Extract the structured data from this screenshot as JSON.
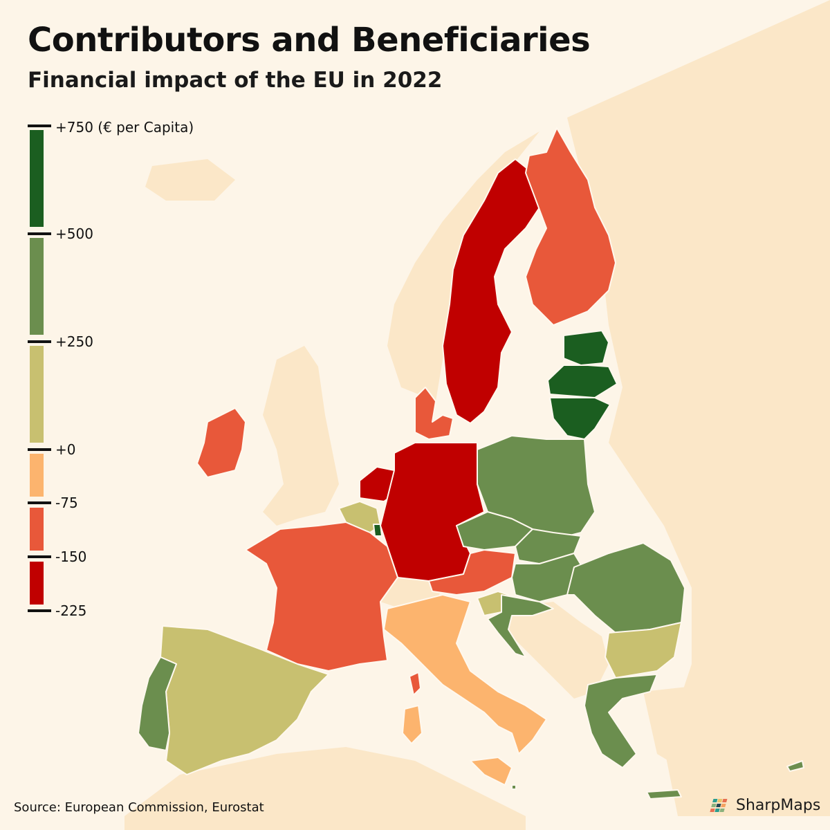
{
  "header": {
    "title": "Contributors and Beneficiaries",
    "subtitle": "Financial impact of the EU in 2022"
  },
  "legend": {
    "ticks": [
      "+750 (€ per Capita)",
      "+500",
      "+250",
      "+0",
      "-75",
      "-150",
      "-225"
    ],
    "bins": [
      {
        "from": 500,
        "to": 750,
        "color": "#1b5e20"
      },
      {
        "from": 250,
        "to": 500,
        "color": "#6b8e4e"
      },
      {
        "from": 0,
        "to": 250,
        "color": "#c8c070"
      },
      {
        "from": -75,
        "to": 0,
        "color": "#fcb46e"
      },
      {
        "from": -150,
        "to": -75,
        "color": "#e8583a"
      },
      {
        "from": -225,
        "to": -150,
        "color": "#c00000"
      }
    ]
  },
  "colors": {
    "background": "#fdf5e8",
    "land_non_eu": "#fbe7c8",
    "border": "#fff8ee"
  },
  "footer": {
    "source": "Source: European Commission, Eurostat",
    "brand": "SharpMaps"
  }
}
